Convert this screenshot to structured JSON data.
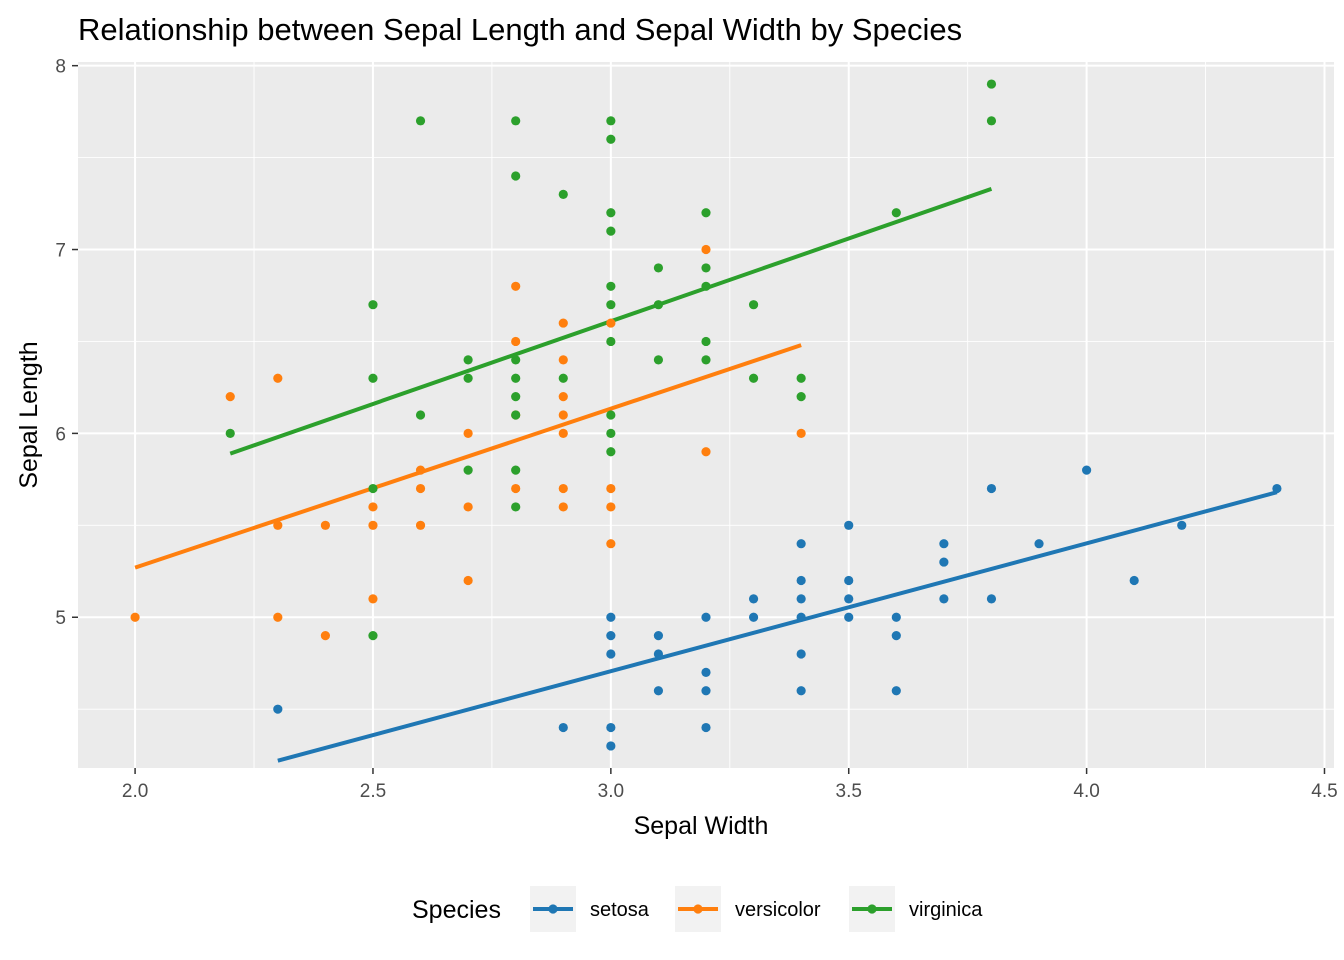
{
  "chart_data": {
    "type": "scatter",
    "title": "Relationship between Sepal Length and Sepal Width by Species",
    "xlabel": "Sepal Width",
    "ylabel": "Sepal Length",
    "xlim": [
      1.88,
      4.52
    ],
    "ylim": [
      4.18,
      8.02
    ],
    "x_ticks": [
      2.0,
      2.5,
      3.0,
      3.5,
      4.0,
      4.5
    ],
    "x_tick_labels": [
      "2.0",
      "2.5",
      "3.0",
      "3.5",
      "4.0",
      "4.5"
    ],
    "y_ticks": [
      5,
      6,
      7,
      8
    ],
    "y_tick_labels": [
      "5",
      "6",
      "7",
      "8"
    ],
    "grid": true,
    "legend_title": "Species",
    "legend_position": "bottom",
    "series": [
      {
        "name": "setosa",
        "color": "#1f77b4",
        "points": [
          [
            2.3,
            4.5
          ],
          [
            2.9,
            4.4
          ],
          [
            3.0,
            5.0
          ],
          [
            3.0,
            4.9
          ],
          [
            3.0,
            4.8
          ],
          [
            3.0,
            4.4
          ],
          [
            3.0,
            4.3
          ],
          [
            3.1,
            4.9
          ],
          [
            3.1,
            4.8
          ],
          [
            3.1,
            4.6
          ],
          [
            3.2,
            5.0
          ],
          [
            3.2,
            4.7
          ],
          [
            3.2,
            4.6
          ],
          [
            3.2,
            4.4
          ],
          [
            3.3,
            5.1
          ],
          [
            3.3,
            5.0
          ],
          [
            3.4,
            5.4
          ],
          [
            3.4,
            5.2
          ],
          [
            3.4,
            5.1
          ],
          [
            3.4,
            5.0
          ],
          [
            3.4,
            4.8
          ],
          [
            3.4,
            4.6
          ],
          [
            3.5,
            5.5
          ],
          [
            3.5,
            5.2
          ],
          [
            3.5,
            5.1
          ],
          [
            3.5,
            5.0
          ],
          [
            3.6,
            5.0
          ],
          [
            3.6,
            4.9
          ],
          [
            3.6,
            4.6
          ],
          [
            3.7,
            5.4
          ],
          [
            3.7,
            5.3
          ],
          [
            3.7,
            5.1
          ],
          [
            3.8,
            5.7
          ],
          [
            3.8,
            5.1
          ],
          [
            3.9,
            5.4
          ],
          [
            4.0,
            5.8
          ],
          [
            4.1,
            5.2
          ],
          [
            4.2,
            5.5
          ],
          [
            4.4,
            5.7
          ]
        ],
        "fit": {
          "x": [
            2.3,
            4.4
          ],
          "y": [
            4.22,
            5.68
          ]
        }
      },
      {
        "name": "versicolor",
        "color": "#ff7f0e",
        "points": [
          [
            2.0,
            5.0
          ],
          [
            2.2,
            6.2
          ],
          [
            2.3,
            6.3
          ],
          [
            2.3,
            5.5
          ],
          [
            2.3,
            5.0
          ],
          [
            2.4,
            5.5
          ],
          [
            2.4,
            4.9
          ],
          [
            2.5,
            5.6
          ],
          [
            2.5,
            5.5
          ],
          [
            2.5,
            5.1
          ],
          [
            2.6,
            5.8
          ],
          [
            2.6,
            5.7
          ],
          [
            2.6,
            5.5
          ],
          [
            2.7,
            6.0
          ],
          [
            2.7,
            5.6
          ],
          [
            2.7,
            5.2
          ],
          [
            2.8,
            6.8
          ],
          [
            2.8,
            6.5
          ],
          [
            2.8,
            6.1
          ],
          [
            2.8,
            5.7
          ],
          [
            2.9,
            6.6
          ],
          [
            2.9,
            6.4
          ],
          [
            2.9,
            6.2
          ],
          [
            2.9,
            6.1
          ],
          [
            2.9,
            6.0
          ],
          [
            2.9,
            5.7
          ],
          [
            2.9,
            5.6
          ],
          [
            3.0,
            6.6
          ],
          [
            3.0,
            5.7
          ],
          [
            3.0,
            5.6
          ],
          [
            3.0,
            5.4
          ],
          [
            3.2,
            7.0
          ],
          [
            3.2,
            5.9
          ],
          [
            3.4,
            6.0
          ]
        ],
        "fit": {
          "x": [
            2.0,
            3.4
          ],
          "y": [
            5.27,
            6.48
          ]
        }
      },
      {
        "name": "virginica",
        "color": "#2ca02c",
        "points": [
          [
            2.2,
            6.0
          ],
          [
            2.5,
            6.7
          ],
          [
            2.5,
            6.3
          ],
          [
            2.5,
            5.7
          ],
          [
            2.5,
            4.9
          ],
          [
            2.6,
            7.7
          ],
          [
            2.6,
            6.1
          ],
          [
            2.7,
            6.4
          ],
          [
            2.7,
            6.3
          ],
          [
            2.7,
            5.8
          ],
          [
            2.8,
            7.7
          ],
          [
            2.8,
            7.4
          ],
          [
            2.8,
            6.4
          ],
          [
            2.8,
            6.3
          ],
          [
            2.8,
            6.2
          ],
          [
            2.8,
            6.1
          ],
          [
            2.8,
            5.8
          ],
          [
            2.8,
            5.6
          ],
          [
            2.9,
            7.3
          ],
          [
            2.9,
            6.3
          ],
          [
            3.0,
            7.7
          ],
          [
            3.0,
            7.6
          ],
          [
            3.0,
            7.2
          ],
          [
            3.0,
            7.1
          ],
          [
            3.0,
            6.8
          ],
          [
            3.0,
            6.7
          ],
          [
            3.0,
            6.5
          ],
          [
            3.0,
            6.1
          ],
          [
            3.0,
            6.0
          ],
          [
            3.0,
            5.9
          ],
          [
            3.1,
            6.9
          ],
          [
            3.1,
            6.7
          ],
          [
            3.1,
            6.4
          ],
          [
            3.2,
            7.2
          ],
          [
            3.2,
            6.9
          ],
          [
            3.2,
            6.8
          ],
          [
            3.2,
            6.5
          ],
          [
            3.2,
            6.4
          ],
          [
            3.3,
            6.7
          ],
          [
            3.3,
            6.3
          ],
          [
            3.4,
            6.3
          ],
          [
            3.4,
            6.2
          ],
          [
            3.6,
            7.2
          ],
          [
            3.8,
            7.9
          ],
          [
            3.8,
            7.7
          ]
        ],
        "fit": {
          "x": [
            2.2,
            3.8
          ],
          "y": [
            5.89,
            7.33
          ]
        }
      }
    ]
  }
}
